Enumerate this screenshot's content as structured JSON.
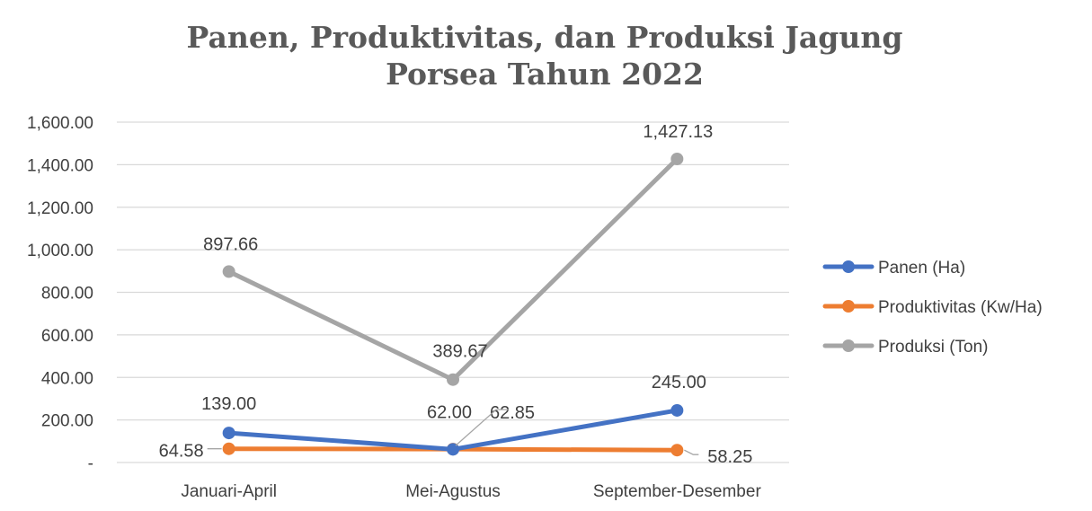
{
  "chart_data": {
    "type": "line",
    "title_lines": [
      "Panen, Produktivitas, dan Produksi Jagung",
      "Porsea Tahun 2022"
    ],
    "categories": [
      "Januari-April",
      "Mei-Agustus",
      "September-Desember"
    ],
    "y_ticks": [
      "-",
      "200.00",
      "400.00",
      "600.00",
      "800.00",
      "1,000.00",
      "1,200.00",
      "1,400.00",
      "1,600.00"
    ],
    "ylim": [
      0,
      1600
    ],
    "grid": true,
    "legend_position": "right",
    "series": [
      {
        "name": "Panen (Ha)",
        "color": "#4472c4",
        "values": [
          139.0,
          62.0,
          245.0
        ],
        "labels": [
          "139.00",
          "62.00",
          "245.00"
        ]
      },
      {
        "name": "Produktivitas (Kw/Ha)",
        "color": "#ed7d31",
        "values": [
          64.58,
          62.85,
          58.25
        ],
        "labels": [
          "64.58",
          "62.85",
          "58.25"
        ]
      },
      {
        "name": "Produksi (Ton)",
        "color": "#a5a5a5",
        "values": [
          897.66,
          389.67,
          1427.13
        ],
        "labels": [
          "897.66",
          "389.67",
          "1,427.13"
        ]
      }
    ]
  }
}
